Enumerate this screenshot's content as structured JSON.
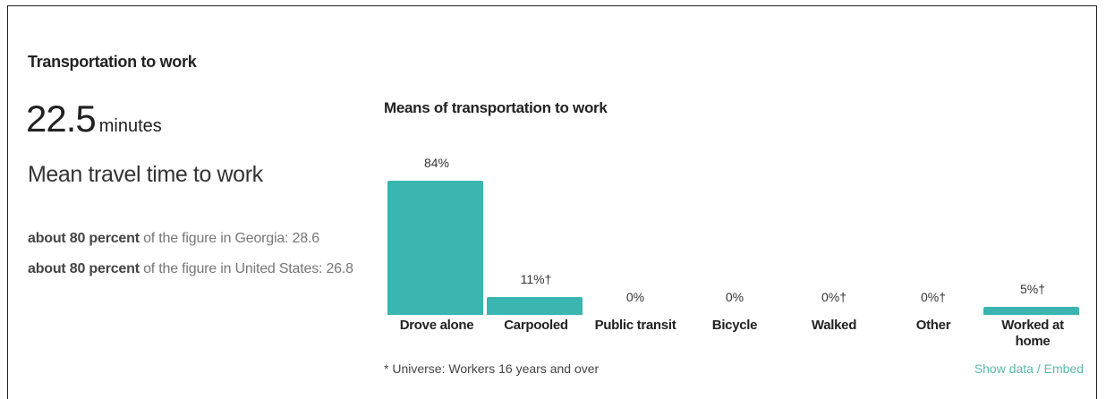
{
  "section": {
    "title": "Transportation to work",
    "stat": {
      "value": "22.5",
      "unit": "minutes",
      "label": "Mean travel time to work"
    },
    "comparisons": [
      {
        "emphasis": "about 80 percent",
        "text": "of the figure in Georgia: 28.6"
      },
      {
        "emphasis": "about 80 percent",
        "text": "of the figure in United States: 26.8"
      }
    ]
  },
  "chart_data": {
    "type": "bar",
    "title": "Means of transportation to work",
    "categories": [
      "Drove alone",
      "Carpooled",
      "Public transit",
      "Bicycle",
      "Walked",
      "Other",
      "Worked at home"
    ],
    "values": [
      84,
      11,
      0,
      0,
      0,
      0,
      5
    ],
    "value_labels": [
      "84%",
      "11%†",
      "0%",
      "0%",
      "0%†",
      "0%†",
      "5%†"
    ],
    "color": "#3ab5b0",
    "footnote": "* Universe: Workers 16 years and over",
    "link": "Show data / Embed"
  }
}
